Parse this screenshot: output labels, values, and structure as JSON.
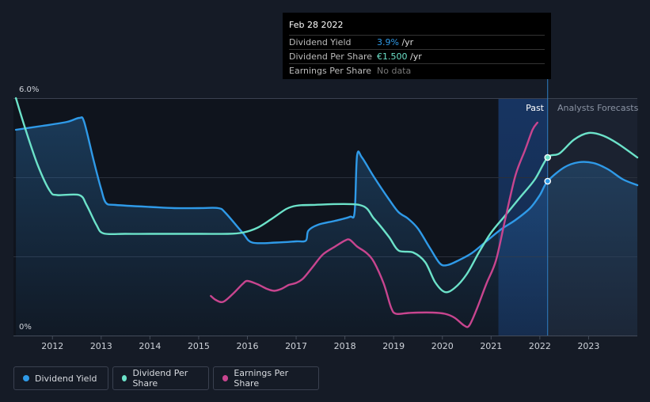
{
  "tooltip": {
    "date": "Feb 28 2022",
    "rows": [
      {
        "label": "Dividend Yield",
        "value": "3.9%",
        "unit": " /yr"
      },
      {
        "label": "Dividend Per Share",
        "value": "€1.500",
        "unit": " /yr"
      },
      {
        "label": "Earnings Per Share",
        "value": "No data",
        "unit": ""
      }
    ]
  },
  "chart_data": {
    "type": "line",
    "title": "",
    "xlabel": "",
    "ylabel": "",
    "ylim": [
      0,
      6.0
    ],
    "xlim": [
      2011.2,
      2024.0
    ],
    "y_tick_labels": [
      "6.0%",
      "0%"
    ],
    "x_ticks": [
      2012,
      2013,
      2014,
      2015,
      2016,
      2017,
      2018,
      2019,
      2020,
      2021,
      2022,
      2023
    ],
    "x_tick_labels": [
      "2012",
      "2013",
      "2014",
      "2015",
      "2016",
      "2017",
      "2018",
      "2019",
      "2020",
      "2021",
      "2022",
      "2023"
    ],
    "past_label": "Past",
    "forecast_label": "Analysts Forecasts",
    "past_start": 2021.15,
    "divider_x": 2022.16,
    "colors": {
      "dividend_yield": "#2f9ae8",
      "dividend_per_share": "#6ce2c9",
      "earnings_per_share": "#c8458f"
    },
    "series": [
      {
        "name": "Dividend Yield",
        "key": "dividend_yield",
        "points": [
          [
            2011.25,
            5.2
          ],
          [
            2011.8,
            5.3
          ],
          [
            2012.3,
            5.4
          ],
          [
            2012.55,
            5.5
          ],
          [
            2012.65,
            5.4
          ],
          [
            2012.85,
            4.4
          ],
          [
            2013.0,
            3.7
          ],
          [
            2013.1,
            3.35
          ],
          [
            2013.3,
            3.3
          ],
          [
            2014.0,
            3.25
          ],
          [
            2014.5,
            3.22
          ],
          [
            2015.0,
            3.22
          ],
          [
            2015.4,
            3.22
          ],
          [
            2015.55,
            3.1
          ],
          [
            2015.9,
            2.6
          ],
          [
            2016.1,
            2.35
          ],
          [
            2016.6,
            2.35
          ],
          [
            2017.0,
            2.38
          ],
          [
            2017.2,
            2.4
          ],
          [
            2017.25,
            2.65
          ],
          [
            2017.45,
            2.8
          ],
          [
            2017.8,
            2.9
          ],
          [
            2018.1,
            3.0
          ],
          [
            2018.2,
            3.12
          ],
          [
            2018.25,
            4.55
          ],
          [
            2018.35,
            4.5
          ],
          [
            2018.6,
            4.0
          ],
          [
            2018.9,
            3.45
          ],
          [
            2019.1,
            3.12
          ],
          [
            2019.3,
            2.95
          ],
          [
            2019.5,
            2.7
          ],
          [
            2019.75,
            2.2
          ],
          [
            2019.95,
            1.82
          ],
          [
            2020.1,
            1.78
          ],
          [
            2020.3,
            1.88
          ],
          [
            2020.6,
            2.08
          ],
          [
            2020.9,
            2.38
          ],
          [
            2021.2,
            2.68
          ],
          [
            2021.5,
            2.92
          ],
          [
            2021.8,
            3.22
          ],
          [
            2022.0,
            3.55
          ],
          [
            2022.16,
            3.9
          ],
          [
            2022.5,
            4.25
          ],
          [
            2022.8,
            4.38
          ],
          [
            2023.1,
            4.36
          ],
          [
            2023.4,
            4.2
          ],
          [
            2023.7,
            3.95
          ],
          [
            2024.0,
            3.8
          ]
        ]
      },
      {
        "name": "Dividend Per Share",
        "key": "dividend_per_share",
        "points": [
          [
            2011.25,
            6.0
          ],
          [
            2011.45,
            5.2
          ],
          [
            2011.7,
            4.3
          ],
          [
            2011.95,
            3.65
          ],
          [
            2012.1,
            3.55
          ],
          [
            2012.55,
            3.55
          ],
          [
            2012.7,
            3.3
          ],
          [
            2012.9,
            2.8
          ],
          [
            2013.05,
            2.58
          ],
          [
            2013.5,
            2.57
          ],
          [
            2014.0,
            2.57
          ],
          [
            2015.0,
            2.57
          ],
          [
            2015.6,
            2.57
          ],
          [
            2015.9,
            2.6
          ],
          [
            2016.2,
            2.72
          ],
          [
            2016.5,
            2.95
          ],
          [
            2016.8,
            3.2
          ],
          [
            2017.0,
            3.28
          ],
          [
            2017.3,
            3.3
          ],
          [
            2018.3,
            3.3
          ],
          [
            2018.6,
            2.95
          ],
          [
            2018.9,
            2.5
          ],
          [
            2019.1,
            2.15
          ],
          [
            2019.4,
            2.1
          ],
          [
            2019.65,
            1.85
          ],
          [
            2019.85,
            1.35
          ],
          [
            2020.05,
            1.1
          ],
          [
            2020.25,
            1.2
          ],
          [
            2020.5,
            1.55
          ],
          [
            2020.75,
            2.1
          ],
          [
            2021.0,
            2.6
          ],
          [
            2021.3,
            3.05
          ],
          [
            2021.6,
            3.5
          ],
          [
            2021.9,
            3.95
          ],
          [
            2022.16,
            4.5
          ],
          [
            2022.4,
            4.6
          ],
          [
            2022.7,
            4.95
          ],
          [
            2023.0,
            5.12
          ],
          [
            2023.3,
            5.05
          ],
          [
            2023.6,
            4.85
          ],
          [
            2024.0,
            4.5
          ]
        ]
      },
      {
        "name": "Earnings Per Share",
        "key": "earnings_per_share",
        "points": [
          [
            2015.25,
            1.0
          ],
          [
            2015.35,
            0.9
          ],
          [
            2015.5,
            0.85
          ],
          [
            2015.7,
            1.05
          ],
          [
            2015.9,
            1.3
          ],
          [
            2016.0,
            1.38
          ],
          [
            2016.2,
            1.3
          ],
          [
            2016.4,
            1.18
          ],
          [
            2016.55,
            1.13
          ],
          [
            2016.7,
            1.18
          ],
          [
            2016.85,
            1.28
          ],
          [
            2017.0,
            1.33
          ],
          [
            2017.15,
            1.45
          ],
          [
            2017.35,
            1.75
          ],
          [
            2017.55,
            2.05
          ],
          [
            2017.8,
            2.25
          ],
          [
            2018.0,
            2.4
          ],
          [
            2018.1,
            2.42
          ],
          [
            2018.25,
            2.25
          ],
          [
            2018.45,
            2.08
          ],
          [
            2018.6,
            1.85
          ],
          [
            2018.8,
            1.3
          ],
          [
            2018.95,
            0.7
          ],
          [
            2019.05,
            0.55
          ],
          [
            2019.3,
            0.57
          ],
          [
            2019.5,
            0.58
          ],
          [
            2019.8,
            0.58
          ],
          [
            2020.05,
            0.55
          ],
          [
            2020.25,
            0.45
          ],
          [
            2020.45,
            0.25
          ],
          [
            2020.55,
            0.25
          ],
          [
            2020.7,
            0.65
          ],
          [
            2020.9,
            1.3
          ],
          [
            2021.1,
            1.9
          ],
          [
            2021.3,
            3.0
          ],
          [
            2021.5,
            4.05
          ],
          [
            2021.7,
            4.7
          ],
          [
            2021.85,
            5.2
          ],
          [
            2021.95,
            5.38
          ]
        ]
      }
    ],
    "highlight_points": [
      {
        "series": "dividend_yield",
        "x": 2022.16,
        "y": 3.9
      },
      {
        "series": "dividend_per_share",
        "x": 2022.16,
        "y": 4.5
      }
    ]
  },
  "legend": [
    {
      "label": "Dividend Yield",
      "key": "dividend_yield"
    },
    {
      "label": "Dividend Per Share",
      "key": "dividend_per_share"
    },
    {
      "label": "Earnings Per Share",
      "key": "earnings_per_share"
    }
  ]
}
